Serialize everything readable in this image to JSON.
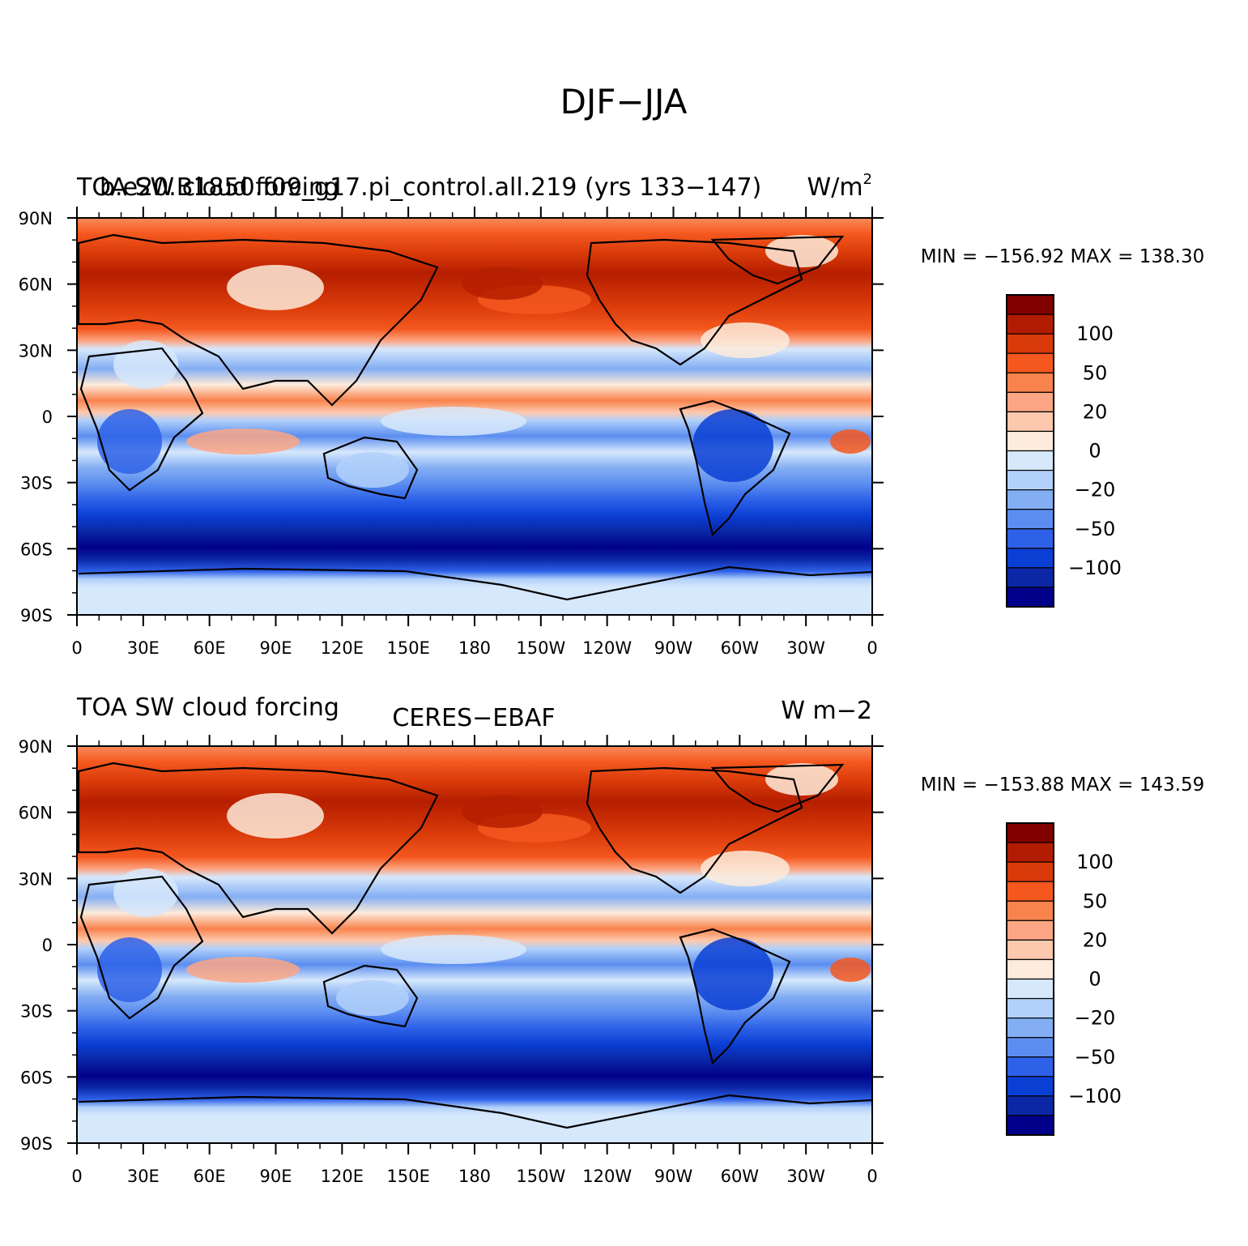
{
  "figure_title": "DJF−JJA",
  "lat_ticks": [
    "90N",
    "60N",
    "30N",
    "0",
    "30S",
    "60S",
    "90S"
  ],
  "lon_ticks": [
    "0",
    "30E",
    "60E",
    "90E",
    "120E",
    "150E",
    "180",
    "150W",
    "120W",
    "90W",
    "60W",
    "30W",
    "0"
  ],
  "colorbar_labels": [
    "100",
    "50",
    "20",
    "0",
    "−20",
    "−50",
    "−100"
  ],
  "colorbar_colors": [
    "#800000",
    "#b11c00",
    "#d93a09",
    "#f4581f",
    "#f9834d",
    "#fca685",
    "#fdc9ae",
    "#fdebdb",
    "#d6e8fc",
    "#b1d0fa",
    "#84aef3",
    "#5b8df0",
    "#2e61e8",
    "#0a3fd4",
    "#0b27a6",
    "#00008a"
  ],
  "panels": [
    {
      "left_title_overlap": "TOA SW cloud forcing",
      "left_title": "b.e20.B1850.f09_g17.pi_control.all.219 (yrs 133−147)",
      "center_title": "",
      "units": "W/m",
      "units_superscript": "2",
      "min_label": "MIN = −156.92",
      "max_label": "MAX = 138.30"
    },
    {
      "left_title_overlap": "",
      "left_title": "TOA SW cloud forcing",
      "center_title": "CERES−EBAF",
      "units": "W m−2",
      "units_superscript": "",
      "min_label": "MIN = −153.88",
      "max_label": "MAX = 143.59"
    }
  ]
}
